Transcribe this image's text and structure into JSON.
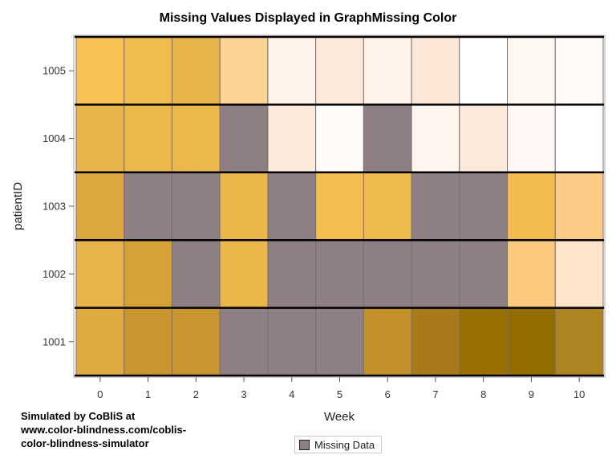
{
  "chart_data": {
    "type": "heatmap",
    "title": "Missing Values Displayed in GraphMissing Color",
    "xlabel": "Week",
    "ylabel": "patientID",
    "x_categories": [
      "0",
      "1",
      "2",
      "3",
      "4",
      "5",
      "6",
      "7",
      "8",
      "9",
      "10"
    ],
    "y_categories": [
      "1005",
      "1004",
      "1003",
      "1002",
      "1001"
    ],
    "missing_color": "#8d7f84",
    "cell_colors": [
      [
        "#f8c154",
        "#efbd4f",
        "#e6b448",
        "#fbd393",
        "#fff4ec",
        "#fde9dc",
        "#fff2e8",
        "#fde7d7",
        "#ffffff",
        "#fff7f2",
        "#fffaf6"
      ],
      [
        "#e8b54b",
        "#ebb84c",
        "#ecb84b",
        "#8d7f84",
        "#fdeadc",
        "#fffbf8",
        "#8d7f84",
        "#fff5ee",
        "#fde9dc",
        "#fff8f4",
        "#ffffff"
      ],
      [
        "#dca73c",
        "#8d7f84",
        "#8d7f84",
        "#ebb64a",
        "#8d7f84",
        "#f5bd4f",
        "#efba4d",
        "#8d7f84",
        "#8d7f84",
        "#f2bb4e",
        "#fbcb85"
      ],
      [
        "#e8b34a",
        "#d6a136",
        "#8d7f84",
        "#ebb64a",
        "#8d7f84",
        "#8d7f84",
        "#8d7f84",
        "#8d7f84",
        "#8d7f84",
        "#fcca7e",
        "#fee4c8"
      ],
      [
        "#dfaa42",
        "#c79630",
        "#c99531",
        "#8d7f84",
        "#8d7f84",
        "#8d7f84",
        "#c3912b",
        "#a87a19",
        "#977000",
        "#946d00",
        "#ad8422"
      ]
    ],
    "legend": [
      {
        "label": "Missing Data",
        "color": "#8d7f84"
      }
    ],
    "legend_position": "bottom"
  },
  "attribution": {
    "line1": "Simulated by CoBliS at",
    "line2": "www.color-blindness.com/coblis-",
    "line3": "color-blindness-simulator"
  },
  "colors": {
    "grid_line": "#000000",
    "cell_border": "#7a6f6f",
    "frame": "#b9a6ae"
  }
}
